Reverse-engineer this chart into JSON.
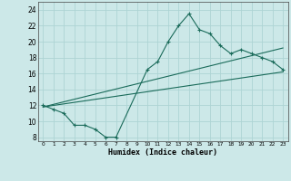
{
  "title": "",
  "xlabel": "Humidex (Indice chaleur)",
  "bg_color": "#cce8e8",
  "line_color": "#1a6b5a",
  "grid_color": "#aed4d4",
  "xlim": [
    -0.5,
    23.5
  ],
  "ylim": [
    7.5,
    25.0
  ],
  "xticks": [
    0,
    1,
    2,
    3,
    4,
    5,
    6,
    7,
    8,
    9,
    10,
    11,
    12,
    13,
    14,
    15,
    16,
    17,
    18,
    19,
    20,
    21,
    22,
    23
  ],
  "yticks": [
    8,
    10,
    12,
    14,
    16,
    18,
    20,
    22,
    24
  ],
  "line1_x": [
    0,
    1,
    2,
    3,
    4,
    5,
    6,
    7,
    10,
    11,
    12,
    13,
    14,
    15,
    16,
    17,
    18,
    19,
    20,
    21,
    22,
    23
  ],
  "line1_y": [
    12.0,
    11.5,
    11.0,
    9.5,
    9.5,
    9.0,
    8.0,
    8.0,
    16.5,
    17.5,
    20.0,
    22.0,
    23.5,
    21.5,
    21.0,
    19.5,
    18.5,
    19.0,
    18.5,
    18.0,
    17.5,
    16.5
  ],
  "line2_x": [
    0,
    23
  ],
  "line2_y": [
    11.8,
    16.2
  ],
  "line3_x": [
    0,
    23
  ],
  "line3_y": [
    11.8,
    19.2
  ],
  "figsize": [
    3.2,
    2.0
  ],
  "dpi": 100
}
